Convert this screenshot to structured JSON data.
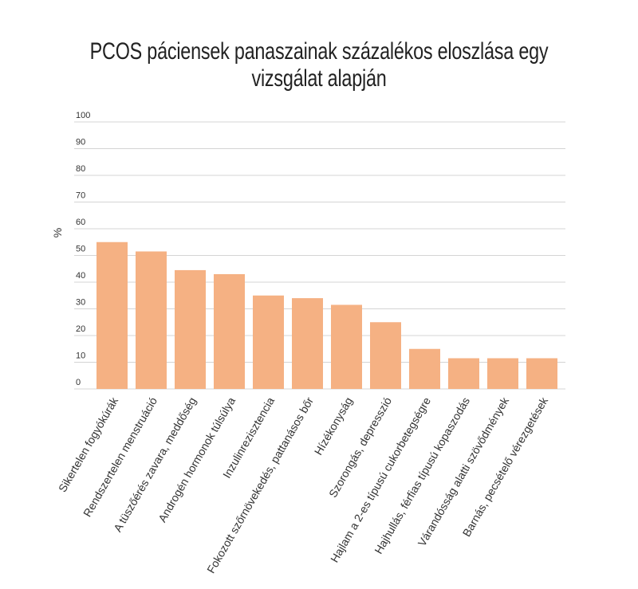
{
  "chart_data": {
    "type": "bar",
    "title": "PCOS páciensek panaszainak százalékos eloszlása egy vizsgálat alapján",
    "xlabel": "",
    "ylabel": "%",
    "ylim": [
      0,
      100
    ],
    "yticks": [
      "0",
      "10",
      "20",
      "30",
      "40",
      "50",
      "60",
      "70",
      "80",
      "90",
      "100"
    ],
    "grid": true,
    "bar_color": "#f5b183",
    "categories": [
      "Sikertelen fogyókúrák",
      "Rendszertelen menstruáció",
      "A tüszőérés zavara, meddőség",
      "Androgén hormonok túlsúlya",
      "Inzulinrezisztencia",
      "Fokozott szőrnövekedés, pattanásos bőr",
      "Hízékonyság",
      "Szorongás, depresszió",
      "Hajlam a 2-es típusú cukorbetegségre",
      "Hajhullás, férfias típusú kopaszodás",
      "Várandósság alatti szövődmények",
      "Barnás, pecsételő vérezgetések"
    ],
    "values": [
      55,
      51.5,
      44.5,
      43,
      35,
      34,
      31.5,
      25,
      15,
      11.5,
      11.5,
      11.5
    ]
  }
}
